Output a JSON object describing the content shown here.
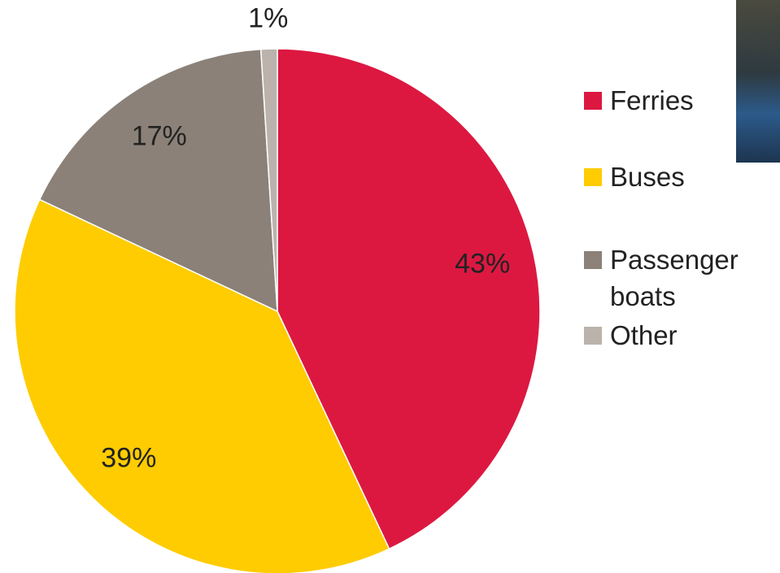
{
  "chart_data": {
    "type": "pie",
    "categories": [
      "Ferries",
      "Buses",
      "Passenger boats",
      "Other"
    ],
    "values": [
      43,
      39,
      17,
      1
    ],
    "value_labels": [
      "43%",
      "39%",
      "17%",
      "1%"
    ],
    "colors": [
      "#dc1841",
      "#fecc00",
      "#8b8178",
      "#bbb3ab"
    ],
    "legend": "right"
  }
}
